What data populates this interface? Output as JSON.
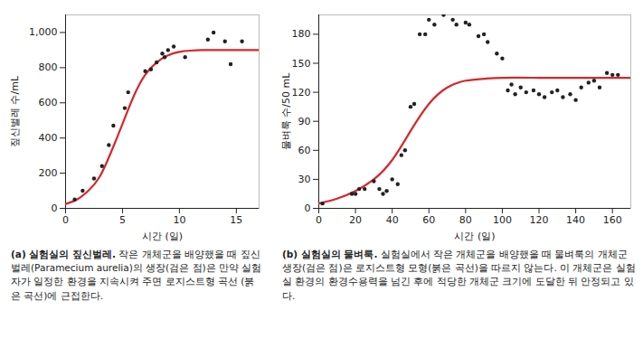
{
  "chart_data": [
    {
      "type": "scatter",
      "panel": "(a)",
      "title": "실험실의 짚신벌레.",
      "caption": "작은 개체군을 배양했을 때 짚신벌레(Paramecium aurelia)의 생장(검은 점)은 만약 실험자가 일정한 환경을 지속시켜 주면 로지스트형 곡선 (붉은 곡선)에 근접한다.",
      "x_label": "시간 (일)",
      "y_label": "짚신벌레 수/mL",
      "xlim": [
        0,
        17
      ],
      "ylim": [
        0,
        1100
      ],
      "xticks": [
        0,
        5,
        10,
        15
      ],
      "yticks": [
        0,
        200,
        400,
        600,
        800,
        {
          "value": 1000,
          "label": "1,000"
        }
      ],
      "series": [
        {
          "type": "line",
          "color": "#d7262b",
          "x": [
            0,
            1,
            2,
            3,
            4,
            5,
            6,
            7,
            8,
            9,
            10,
            11,
            12,
            13,
            14,
            15,
            16,
            17
          ],
          "values": [
            25,
            50,
            100,
            180,
            320,
            480,
            640,
            760,
            830,
            870,
            890,
            897,
            900,
            900,
            900,
            900,
            900,
            900
          ]
        },
        {
          "type": "scatter",
          "color": "#222222",
          "x": [
            0.8,
            1.5,
            2.5,
            3.2,
            3.8,
            4.2,
            5.2,
            5.5,
            7,
            7.5,
            8,
            8.5,
            8.7,
            9,
            9.5,
            10.5,
            12.5,
            13,
            14,
            14.5,
            15.5
          ],
          "values": [
            50,
            100,
            170,
            240,
            360,
            470,
            570,
            660,
            780,
            790,
            830,
            880,
            860,
            900,
            920,
            860,
            960,
            1000,
            950,
            820,
            950
          ]
        }
      ]
    },
    {
      "type": "scatter",
      "panel": "(b)",
      "title": "실험실의 물벼룩.",
      "caption": "실험실에서 작은 개체군을 배양했을 때 물벼룩의 개체군 생장(검은 점)은 로지스트형 모형(붉은 곡선)을 따르지 않는다. 이 개체군은 실험실 환경의 환경수용력을 넘긴 후에 적당한 개체군 크기에 도달한 뒤 안정되고 있다.",
      "x_label": "시간 (일)",
      "y_label": "물벼룩 수/50 mL",
      "xlim": [
        0,
        170
      ],
      "ylim": [
        0,
        200
      ],
      "xticks": [
        0,
        20,
        40,
        60,
        80,
        100,
        120,
        140,
        160
      ],
      "yticks": [
        0,
        30,
        60,
        90,
        120,
        150,
        180
      ],
      "series": [
        {
          "type": "line",
          "color": "#d7262b",
          "x": [
            0,
            10,
            20,
            30,
            40,
            50,
            60,
            70,
            80,
            90,
            100,
            120,
            140,
            170
          ],
          "values": [
            5,
            10,
            18,
            30,
            50,
            80,
            108,
            125,
            132,
            134,
            135,
            135,
            135,
            135
          ]
        },
        {
          "type": "scatter",
          "color": "#222222",
          "x": [
            2,
            18,
            20,
            22,
            25,
            30,
            33,
            35,
            37,
            40,
            43,
            45,
            47,
            50,
            52,
            55,
            58,
            60,
            63,
            68,
            73,
            75,
            80,
            82,
            87,
            90,
            92,
            97,
            100,
            103,
            105,
            107,
            110,
            113,
            117,
            120,
            123,
            127,
            130,
            133,
            137,
            140,
            143,
            147,
            150,
            153,
            157,
            160,
            163
          ],
          "values": [
            5,
            15,
            15,
            20,
            20,
            28,
            20,
            15,
            18,
            30,
            25,
            55,
            60,
            105,
            108,
            180,
            180,
            195,
            190,
            200,
            195,
            190,
            192,
            190,
            178,
            180,
            172,
            160,
            155,
            122,
            128,
            118,
            125,
            120,
            122,
            118,
            115,
            120,
            122,
            115,
            118,
            112,
            125,
            130,
            132,
            125,
            140,
            138,
            138
          ]
        }
      ]
    }
  ]
}
